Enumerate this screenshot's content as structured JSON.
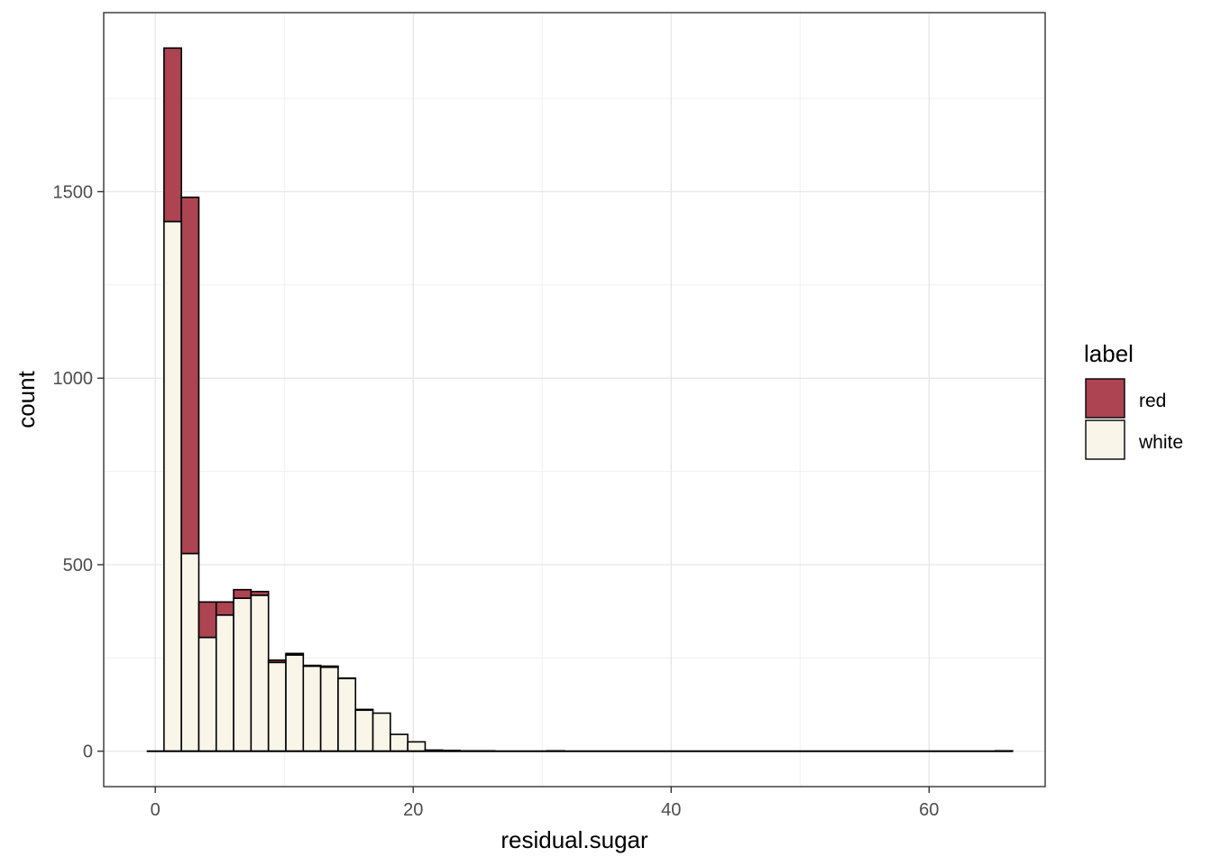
{
  "chart_data": {
    "type": "bar",
    "subtype": "stacked-histogram",
    "xlabel": "residual.sugar",
    "ylabel": "count",
    "xlim": [
      -4,
      69
    ],
    "ylim": [
      -95,
      1980
    ],
    "x_ticks": [
      0,
      20,
      40,
      60
    ],
    "y_ticks": [
      0,
      500,
      1000,
      1500
    ],
    "grid": true,
    "legend_position": "right",
    "legend": {
      "title": "label",
      "items": [
        {
          "key": "red",
          "label": "red",
          "color": "#ac4452"
        },
        {
          "key": "white",
          "label": "white",
          "color": "#f9f5e9"
        }
      ]
    },
    "bin_width": 1.35,
    "bin_start": -0.665,
    "bins": [
      {
        "x": 0.0,
        "white": 0,
        "red": 0
      },
      {
        "x": 1.35,
        "white": 1420,
        "red": 465
      },
      {
        "x": 2.7,
        "white": 530,
        "red": 955
      },
      {
        "x": 4.05,
        "white": 305,
        "red": 95
      },
      {
        "x": 5.4,
        "white": 365,
        "red": 35
      },
      {
        "x": 6.75,
        "white": 410,
        "red": 23
      },
      {
        "x": 8.1,
        "white": 418,
        "red": 10
      },
      {
        "x": 9.45,
        "white": 238,
        "red": 6
      },
      {
        "x": 10.8,
        "white": 258,
        "red": 4
      },
      {
        "x": 12.15,
        "white": 228,
        "red": 2
      },
      {
        "x": 13.5,
        "white": 225,
        "red": 3
      },
      {
        "x": 14.85,
        "white": 195,
        "red": 1
      },
      {
        "x": 16.2,
        "white": 110,
        "red": 2
      },
      {
        "x": 17.55,
        "white": 102,
        "red": 0
      },
      {
        "x": 18.9,
        "white": 45,
        "red": 0
      },
      {
        "x": 20.25,
        "white": 25,
        "red": 0
      },
      {
        "x": 21.6,
        "white": 3,
        "red": 0
      },
      {
        "x": 22.95,
        "white": 2,
        "red": 0
      },
      {
        "x": 24.3,
        "white": 1,
        "red": 0
      },
      {
        "x": 25.65,
        "white": 1,
        "red": 0
      },
      {
        "x": 31.05,
        "white": 1,
        "red": 0
      },
      {
        "x": 65.8,
        "white": 1,
        "red": 0
      }
    ],
    "baseline_extent": [
      -0.665,
      66.475
    ]
  }
}
